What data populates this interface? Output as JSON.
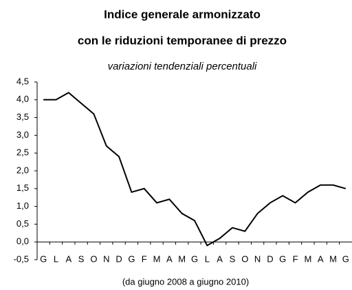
{
  "chart_data": {
    "type": "line",
    "title": "Indice generale armonizzato",
    "title_line2": "con le riduzioni temporanee di prezzo",
    "subtitle": "variazioni tendenziali percentuali",
    "x_label": "(da giugno 2008 a giugno 2010)",
    "categories": [
      "G",
      "L",
      "A",
      "S",
      "O",
      "N",
      "D",
      "G",
      "F",
      "M",
      "A",
      "M",
      "G",
      "L",
      "A",
      "S",
      "O",
      "N",
      "D",
      "G",
      "F",
      "M",
      "A",
      "M",
      "G"
    ],
    "series": [
      {
        "name": "Indice generale armonizzato",
        "color": "#000000",
        "values": [
          4.0,
          4.0,
          4.2,
          3.9,
          3.6,
          2.7,
          2.4,
          1.4,
          1.5,
          1.1,
          1.2,
          0.8,
          0.6,
          -0.1,
          0.1,
          0.4,
          0.3,
          0.8,
          1.1,
          1.3,
          1.1,
          1.4,
          1.6,
          1.6,
          1.5
        ]
      }
    ],
    "ylim": [
      -0.5,
      4.5
    ],
    "yticks": [
      {
        "value": -0.5,
        "label": "-0,5"
      },
      {
        "value": 0,
        "label": "0,0"
      },
      {
        "value": 0.5,
        "label": "0,5"
      },
      {
        "value": 1,
        "label": "1,0"
      },
      {
        "value": 1.5,
        "label": "1,5"
      },
      {
        "value": 2,
        "label": "2,0"
      },
      {
        "value": 2.5,
        "label": "2,5"
      },
      {
        "value": 3,
        "label": "3,0"
      },
      {
        "value": 3.5,
        "label": "3,5"
      },
      {
        "value": 4,
        "label": "4,0"
      },
      {
        "value": 4.5,
        "label": "4,5"
      }
    ]
  }
}
